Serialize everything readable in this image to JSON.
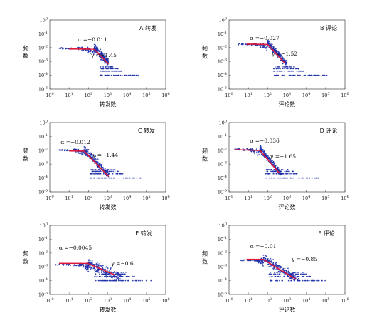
{
  "chart_data": [
    {
      "panel": "A",
      "type": "scatter",
      "title": "A 转发",
      "xlabel": "转发数",
      "ylabel": "频数",
      "xlog": true,
      "ylog": true,
      "xlim": [
        1,
        1000000
      ],
      "ylim": [
        1e-05,
        1
      ],
      "tick_exponents_x": [
        0,
        1,
        2,
        3,
        4,
        5,
        6
      ],
      "tick_exponents_y": [
        -5,
        -4,
        -3,
        -2,
        -1,
        0
      ],
      "annotations": {
        "alpha": "α =−0.011",
        "gamma": "γ =−1.45"
      },
      "fit_alpha": {
        "x0": 10,
        "y0": 0.008,
        "slope": -0.011,
        "x1": 200
      },
      "fit_gamma": {
        "x0": 200,
        "y0": 0.00769,
        "slope": -1.45,
        "x1": 1100
      },
      "cloud": {
        "x_min": 2.5,
        "x_head_end": 25,
        "y_head": 0.009,
        "x_knee": 200,
        "y_knee": 0.007,
        "gamma": -1.45,
        "x_tail_end": 1100,
        "floor": 0.0001,
        "floor_x_end": 40000,
        "spread": 0.3
      },
      "marker_color": "#1c2fa8",
      "fit_color": "#e0183c"
    },
    {
      "panel": "B",
      "type": "scatter",
      "title": "B 评论",
      "xlabel": "评论数",
      "ylabel": "频数",
      "xlog": true,
      "ylog": true,
      "xlim": [
        1,
        1000000
      ],
      "ylim": [
        1e-05,
        1
      ],
      "tick_exponents_x": [
        0,
        1,
        2,
        3,
        4,
        5,
        6
      ],
      "tick_exponents_y": [
        -5,
        -4,
        -3,
        -2,
        -1,
        0
      ],
      "annotations": {
        "alpha": "α =−0.027",
        "gamma": "γ =−1.52"
      },
      "fit_alpha": {
        "x0": 8,
        "y0": 0.018,
        "slope": -0.027,
        "x1": 100
      },
      "fit_gamma": {
        "x0": 100,
        "y0": 0.0169,
        "slope": -1.52,
        "x1": 800
      },
      "cloud": {
        "x_min": 3,
        "x_head_end": 15,
        "y_head": 0.018,
        "x_knee": 100,
        "y_knee": 0.015,
        "gamma": -1.52,
        "x_tail_end": 1000,
        "floor": 0.0001,
        "floor_x_end": 120000,
        "spread": 0.25
      },
      "marker_color": "#1c2fa8",
      "fit_color": "#e0183c"
    },
    {
      "panel": "C",
      "type": "scatter",
      "title": "C 转发",
      "xlabel": "转发数",
      "ylabel": "频数",
      "xlog": true,
      "ylog": true,
      "xlim": [
        1,
        1000000
      ],
      "ylim": [
        1e-05,
        1
      ],
      "tick_exponents_x": [
        0,
        1,
        2,
        3,
        4,
        5,
        6
      ],
      "tick_exponents_y": [
        -5,
        -4,
        -3,
        -2,
        -1,
        0
      ],
      "annotations": {
        "alpha": "α =−0.012",
        "gamma": "γ =−1.44"
      },
      "fit_alpha": {
        "x0": 10,
        "y0": 0.009,
        "slope": -0.012,
        "x1": 60
      },
      "fit_gamma": {
        "x0": 60,
        "y0": 0.0087,
        "slope": -1.44,
        "x1": 1100
      },
      "cloud": {
        "x_min": 3,
        "x_head_end": 15,
        "y_head": 0.011,
        "x_knee": 60,
        "y_knee": 0.008,
        "gamma": -1.44,
        "x_tail_end": 1100,
        "floor": 0.0001,
        "floor_x_end": 60000,
        "spread": 0.3
      },
      "marker_color": "#1c2fa8",
      "fit_color": "#e0183c"
    },
    {
      "panel": "D",
      "type": "scatter",
      "title": "D 评论",
      "xlabel": "评论数",
      "ylabel": "频数",
      "xlog": true,
      "ylog": true,
      "xlim": [
        1,
        1000000
      ],
      "ylim": [
        1e-05,
        1
      ],
      "tick_exponents_x": [
        0,
        1,
        2,
        3,
        4,
        5,
        6
      ],
      "tick_exponents_y": [
        -5,
        -4,
        -3,
        -2,
        -1,
        0
      ],
      "annotations": {
        "alpha": "α =−0.036",
        "gamma": "γ =−1.65"
      },
      "fit_alpha": {
        "x0": 2,
        "y0": 0.011,
        "slope": -0.036,
        "x1": 40
      },
      "fit_gamma": {
        "x0": 40,
        "y0": 0.0099,
        "slope": -1.65,
        "x1": 400
      },
      "cloud": {
        "x_min": 2,
        "x_head_end": 8,
        "y_head": 0.012,
        "x_knee": 40,
        "y_knee": 0.009,
        "gamma": -1.65,
        "x_tail_end": 500,
        "floor": 0.0001,
        "floor_x_end": 50000,
        "spread": 0.25
      },
      "marker_color": "#1c2fa8",
      "fit_color": "#e0183c"
    },
    {
      "panel": "E",
      "type": "scatter",
      "title": "E 转发",
      "xlabel": "转发数",
      "ylabel": "频数",
      "xlog": true,
      "ylog": true,
      "xlim": [
        1,
        1000000
      ],
      "ylim": [
        1e-05,
        1
      ],
      "tick_exponents_x": [
        0,
        1,
        2,
        3,
        4,
        5,
        6
      ],
      "tick_exponents_y": [
        -5,
        -4,
        -3,
        -2,
        -1,
        0
      ],
      "annotations": {
        "alpha": "α =−0.0045",
        "gamma": "γ =−0.6"
      },
      "fit_alpha": {
        "x0": 3,
        "y0": 0.0018,
        "slope": -0.0045,
        "x1": 100
      },
      "fit_gamma": {
        "x0": 100,
        "y0": 0.0017,
        "slope": -0.6,
        "x1": 2500
      },
      "cloud": {
        "x_min": 2,
        "x_head_end": 30,
        "y_head": 0.0015,
        "x_knee": 100,
        "y_knee": 0.0012,
        "gamma": -0.6,
        "x_tail_end": 5000,
        "floor": 0.0001,
        "floor_x_end": 200000,
        "spread": 0.35
      },
      "marker_color": "#1c2fa8",
      "fit_color": "#e0183c"
    },
    {
      "panel": "F",
      "type": "scatter",
      "title": "F 评论",
      "xlabel": "评论数",
      "ylabel": "频数",
      "xlog": true,
      "ylog": true,
      "xlim": [
        1,
        1000000
      ],
      "ylim": [
        1e-05,
        1
      ],
      "tick_exponents_x": [
        0,
        1,
        2,
        3,
        4,
        5,
        6
      ],
      "tick_exponents_y": [
        -5,
        -4,
        -3,
        -2,
        -1,
        0
      ],
      "annotations": {
        "alpha": "α =−0.01",
        "gamma": "γ =−0.85"
      },
      "fit_alpha": {
        "x0": 8,
        "y0": 0.0035,
        "slope": -0.01,
        "x1": 60
      },
      "fit_gamma": {
        "x0": 60,
        "y0": 0.0034,
        "slope": -0.85,
        "x1": 3000
      },
      "cloud": {
        "x_min": 4,
        "x_head_end": 25,
        "y_head": 0.003,
        "x_knee": 60,
        "y_knee": 0.0028,
        "gamma": -0.85,
        "x_tail_end": 4000,
        "floor": 0.0001,
        "floor_x_end": 100000,
        "spread": 0.3
      },
      "marker_color": "#1c2fa8",
      "fit_color": "#e0183c"
    }
  ]
}
